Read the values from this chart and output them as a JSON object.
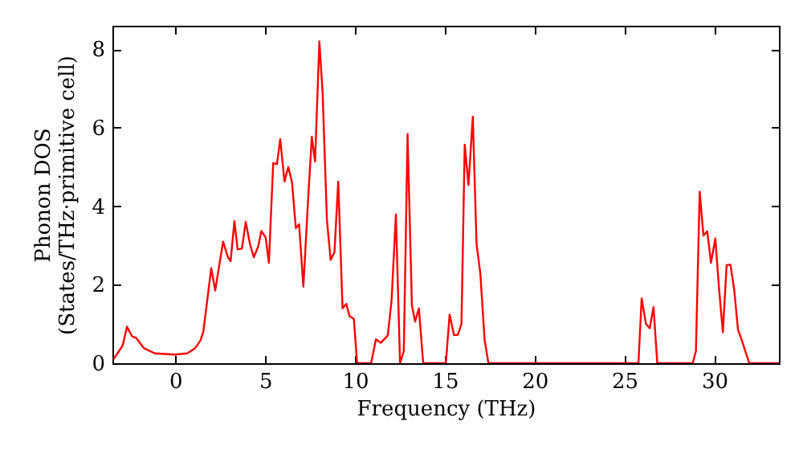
{
  "chart_data": {
    "type": "line",
    "xlabel": "Frequency (THz)",
    "ylabel": "Phonon DOS\n(States/THz·primitive cell)",
    "xlim": [
      -3.5,
      33.6
    ],
    "ylim": [
      0,
      8.6
    ],
    "xticks": [
      0,
      5,
      10,
      15,
      20,
      25,
      30
    ],
    "yticks": [
      0,
      2,
      4,
      6,
      8
    ],
    "grid": false,
    "marker": "none",
    "line_style": "solid",
    "series": [
      {
        "color": "#ff0000",
        "x": [
          -3.44,
          -2.93,
          -2.69,
          -2.4,
          -2.19,
          -1.74,
          -1.14,
          0,
          0.66,
          1.1,
          1.4,
          1.56,
          2.0,
          2.22,
          2.66,
          2.93,
          3.08,
          3.29,
          3.47,
          3.71,
          3.92,
          4.16,
          4.37,
          4.61,
          4.79,
          5.03,
          5.21,
          5.45,
          5.66,
          5.84,
          6.08,
          6.29,
          6.5,
          6.71,
          6.89,
          7.13,
          7.37,
          7.6,
          7.78,
          8.02,
          8.2,
          8.44,
          8.65,
          8.86,
          9.07,
          9.31,
          9.52,
          9.7,
          9.94,
          10.12,
          10.9,
          11.17,
          11.44,
          11.83,
          12.04,
          12.28,
          12.51,
          12.72,
          12.93,
          13.17,
          13.35,
          13.56,
          13.8,
          15.06,
          15.27,
          15.51,
          15.72,
          15.93,
          16.11,
          16.32,
          16.56,
          16.77,
          16.98,
          17.22,
          17.43,
          25.78,
          25.96,
          26.2,
          26.41,
          26.62,
          26.83,
          28.8,
          28.98,
          29.19,
          29.4,
          29.61,
          29.82,
          30.06,
          30.27,
          30.48,
          30.69,
          30.9,
          31.11,
          31.32,
          31.53,
          31.95,
          33.6
        ],
        "values": [
          0.1,
          0.45,
          0.93,
          0.68,
          0.65,
          0.38,
          0.25,
          0.22,
          0.25,
          0.38,
          0.58,
          0.8,
          2.42,
          1.85,
          3.1,
          2.7,
          2.6,
          3.62,
          2.9,
          2.92,
          3.6,
          3.03,
          2.7,
          2.97,
          3.37,
          3.2,
          2.56,
          5.1,
          5.07,
          5.71,
          4.63,
          5.0,
          4.6,
          3.44,
          3.54,
          1.95,
          3.99,
          5.77,
          5.14,
          8.2,
          6.9,
          3.65,
          2.63,
          2.83,
          4.63,
          1.4,
          1.51,
          1.2,
          1.13,
          0,
          0,
          0.61,
          0.52,
          0.71,
          1.61,
          3.79,
          0,
          0.31,
          5.84,
          1.47,
          1.06,
          1.4,
          0,
          0,
          1.24,
          0.72,
          0.72,
          1.0,
          5.57,
          4.54,
          6.28,
          3.04,
          2.29,
          0.59,
          0,
          0,
          1.65,
          1.0,
          0.89,
          1.43,
          0,
          0,
          0.31,
          4.37,
          3.25,
          3.36,
          2.56,
          3.18,
          1.88,
          0.79,
          2.5,
          2.51,
          1.88,
          0.86,
          0.59,
          0,
          0
        ]
      }
    ]
  }
}
